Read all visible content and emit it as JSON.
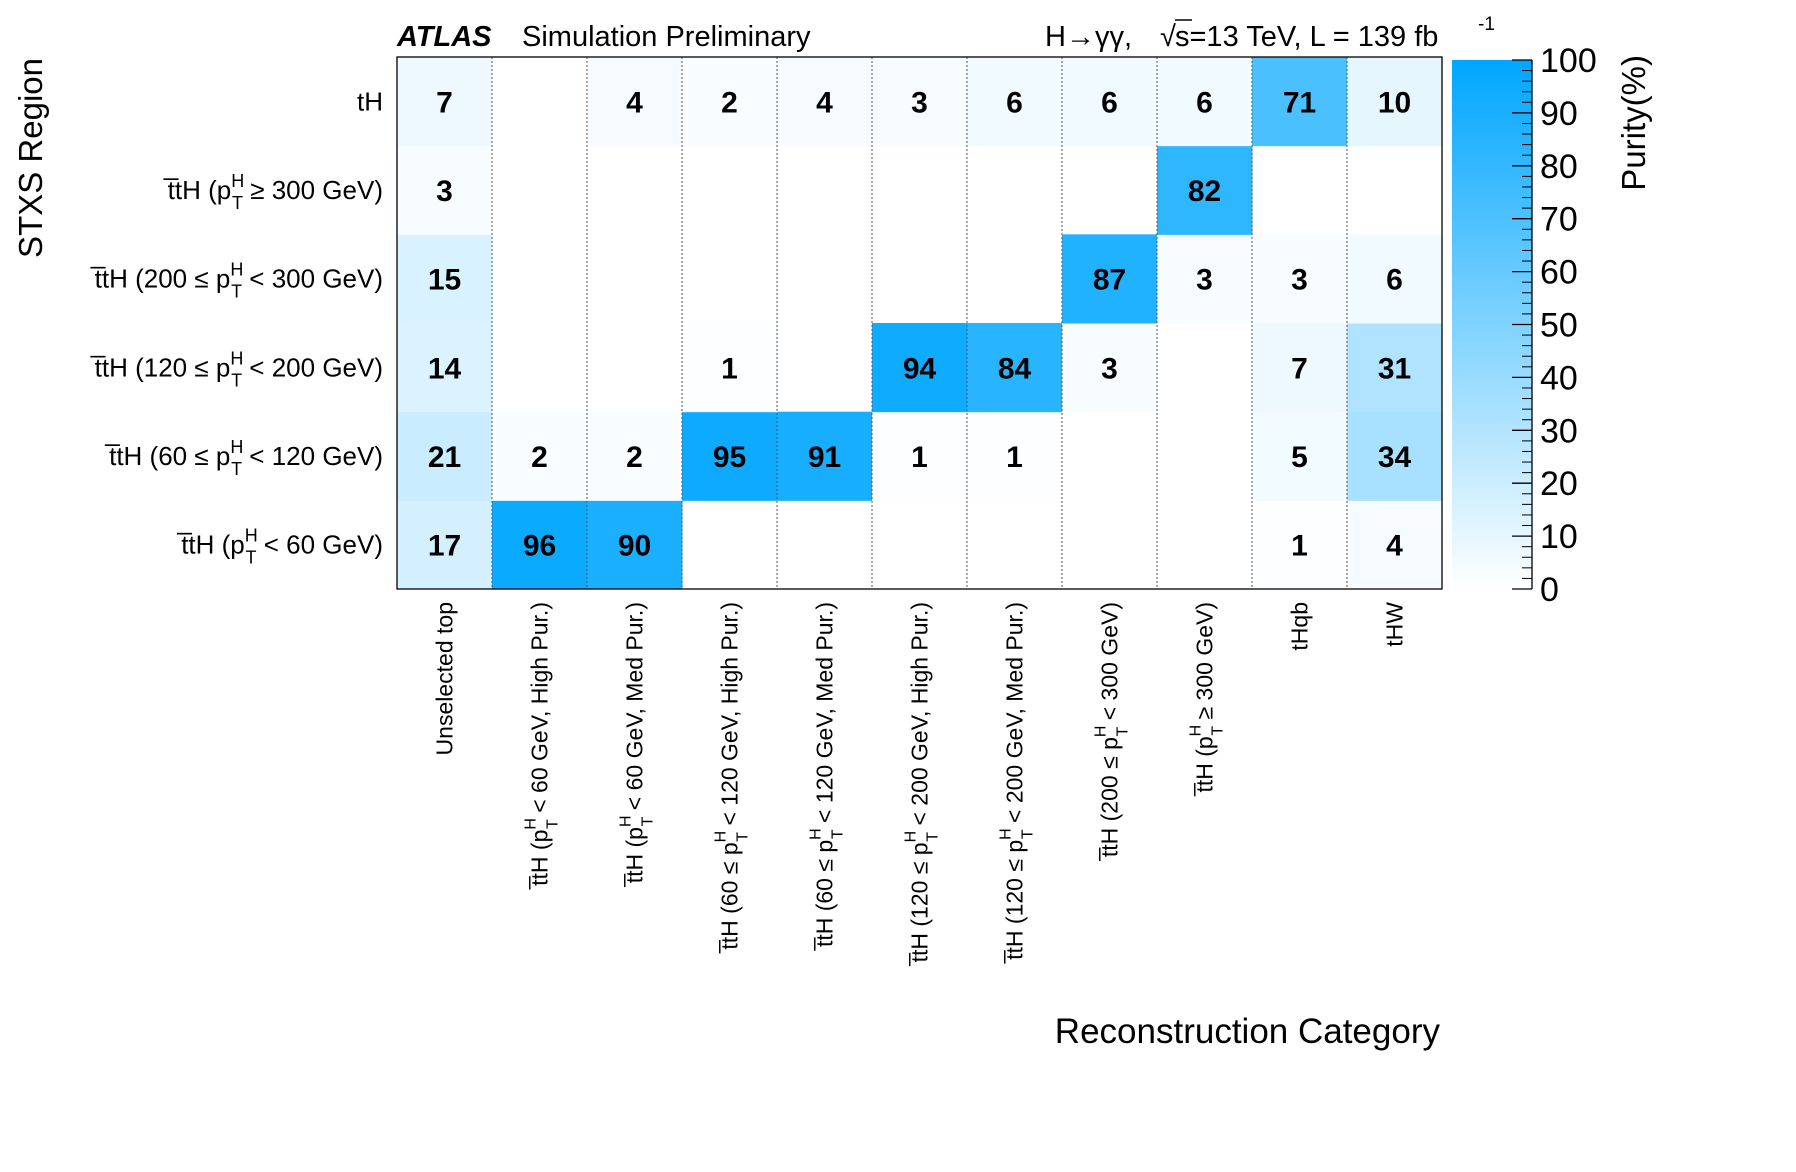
{
  "header": {
    "brand": "ATLAS",
    "subtitle": "Simulation Preliminary",
    "process": "H→γγ,",
    "sqrt_sign": "√",
    "energy": "s=13 TeV, L = 139 fb",
    "lumi_exp": "-1"
  },
  "colors": {
    "accent": "#00a6ff",
    "low": "#ffffff",
    "text": "#000000",
    "grid": "#555555"
  },
  "chart_data": {
    "type": "heatmap",
    "title": "",
    "xlabel": "Reconstruction Category",
    "ylabel": "STXS Region",
    "zlabel": "Purity(%)",
    "zlim": [
      0,
      100
    ],
    "z_ticks": [
      "0",
      "10",
      "20",
      "30",
      "40",
      "50",
      "60",
      "70",
      "80",
      "90",
      "100"
    ],
    "x_categories": [
      {
        "main": "Unselected top"
      },
      {
        "main": "t̅tH (p",
        "sup": "H",
        "sub": "T",
        "rest": " < 60 GeV, High Pur.)"
      },
      {
        "main": "t̅tH (p",
        "sup": "H",
        "sub": "T",
        "rest": " < 60 GeV, Med  Pur.)"
      },
      {
        "main": "t̅tH (60 ≤ p",
        "sup": "H",
        "sub": "T",
        "rest": " < 120 GeV, High Pur.)"
      },
      {
        "main": "t̅tH (60 ≤ p",
        "sup": "H",
        "sub": "T",
        "rest": " < 120 GeV, Med  Pur.)"
      },
      {
        "main": "t̅tH (120 ≤ p",
        "sup": "H",
        "sub": "T",
        "rest": " < 200 GeV, High Pur.)"
      },
      {
        "main": "t̅tH (120 ≤ p",
        "sup": "H",
        "sub": "T",
        "rest": " < 200 GeV, Med  Pur.)"
      },
      {
        "main": "t̅tH (200 ≤ p",
        "sup": "H",
        "sub": "T",
        "rest": " < 300 GeV)"
      },
      {
        "main": "t̅tH (p",
        "sup": "H",
        "sub": "T",
        "rest": " ≥ 300 GeV)"
      },
      {
        "main": "tHqb"
      },
      {
        "main": "tHW"
      }
    ],
    "y_categories": [
      {
        "main": "t̅tH (p",
        "sup": "H",
        "sub": "T",
        "rest": " < 60 GeV)"
      },
      {
        "main": "t̅tH (60 ≤ p",
        "sup": "H",
        "sub": "T",
        "rest": " < 120 GeV)"
      },
      {
        "main": "t̅tH (120 ≤ p",
        "sup": "H",
        "sub": "T",
        "rest": " < 200 GeV)"
      },
      {
        "main": "t̅tH (200 ≤ p",
        "sup": "H",
        "sub": "T",
        "rest": " < 300 GeV)"
      },
      {
        "main": "t̅tH (p",
        "sup": "H",
        "sub": "T",
        "rest": " ≥ 300 GeV)"
      },
      {
        "main": "tH"
      }
    ],
    "values": [
      [
        17,
        96,
        90,
        null,
        null,
        null,
        null,
        null,
        null,
        1,
        4
      ],
      [
        21,
        2,
        2,
        95,
        91,
        1,
        1,
        null,
        null,
        5,
        34
      ],
      [
        14,
        null,
        null,
        1,
        null,
        94,
        84,
        3,
        null,
        7,
        31
      ],
      [
        15,
        null,
        null,
        null,
        null,
        null,
        null,
        87,
        3,
        3,
        6
      ],
      [
        3,
        null,
        null,
        null,
        null,
        null,
        null,
        null,
        82,
        null,
        null
      ],
      [
        7,
        null,
        4,
        2,
        4,
        3,
        6,
        6,
        6,
        71,
        10
      ]
    ]
  }
}
